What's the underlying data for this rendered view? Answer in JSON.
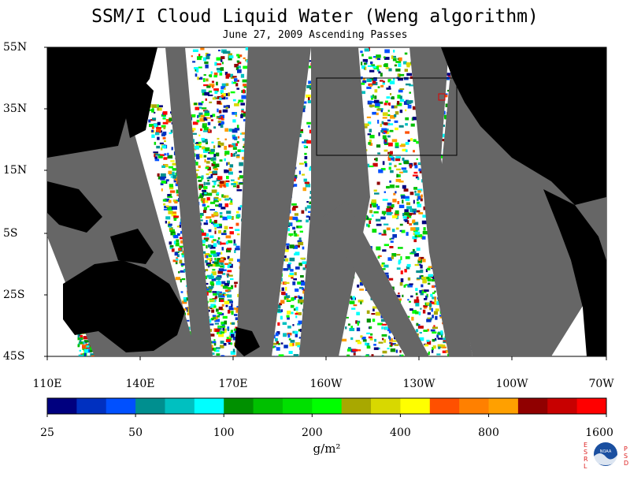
{
  "header": {
    "title": "SSM/I Cloud Liquid Water (Weng algorithm)",
    "subtitle": "June 27, 2009  Ascending Passes"
  },
  "map": {
    "lat_labels": [
      "55N",
      "35N",
      "15N",
      "5S",
      "25S",
      "45S"
    ],
    "lon_labels": [
      "110E",
      "140E",
      "170E",
      "160W",
      "130W",
      "100W",
      "70W"
    ],
    "land_color": "#000000",
    "no_data_color": "#666666",
    "clear_color": "#ffffff",
    "box_color": "#000000",
    "marker_color": "#e00000"
  },
  "colorbar": {
    "colors": [
      "#00007f",
      "#0030c0",
      "#0050ff",
      "#008f8f",
      "#00c0c0",
      "#00ffff",
      "#009000",
      "#00c000",
      "#00e000",
      "#00ff00",
      "#a8a800",
      "#d8d800",
      "#ffff00",
      "#ff5000",
      "#ff8000",
      "#ffa000",
      "#900000",
      "#c80000",
      "#ff0000"
    ],
    "tick_labels": [
      "25",
      "50",
      "100",
      "200",
      "400",
      "800",
      "1600"
    ],
    "unit": "g/m²"
  },
  "logo": {
    "left_letters": [
      "E",
      "S",
      "R",
      "L"
    ],
    "right_letters": [
      "P",
      "S",
      "D"
    ],
    "badge_text": "NOAA"
  }
}
